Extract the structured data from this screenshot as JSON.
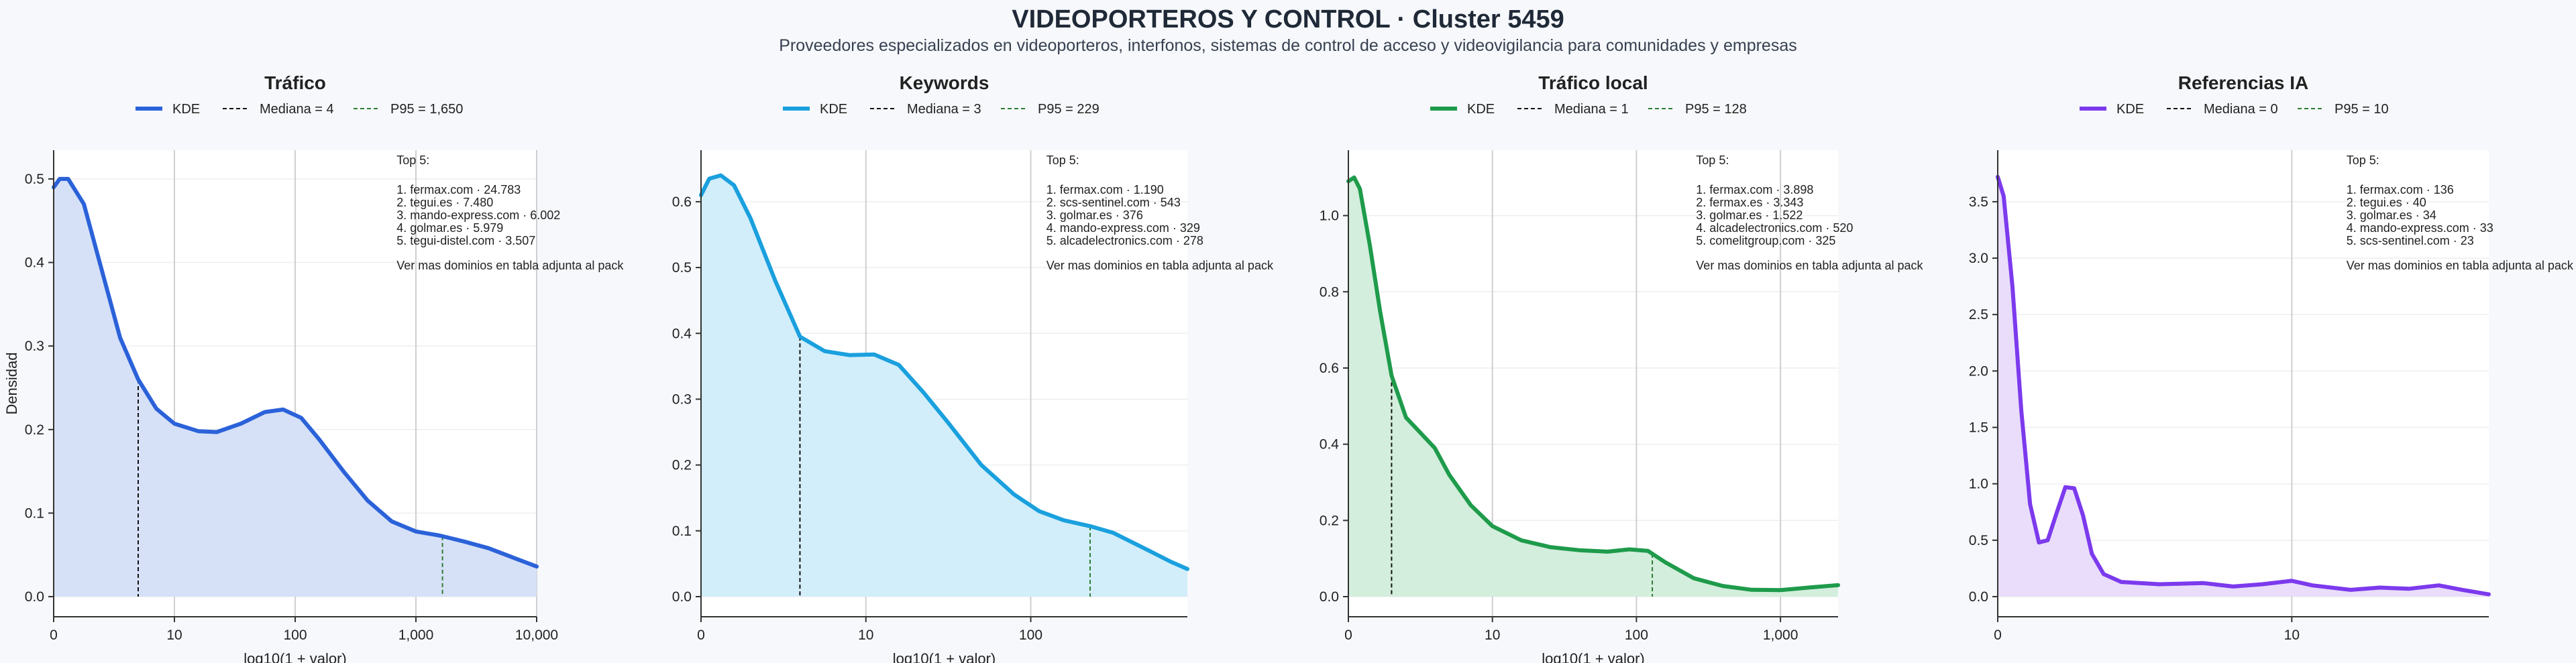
{
  "header": {
    "title": "VIDEOPORTEROS Y CONTROL · Cluster 5459",
    "subtitle": "Proveedores especializados en videoporteros, interfonos, sistemas de control de acceso y videovigilancia para comunidades y empresas"
  },
  "chart_data": [
    {
      "type": "area",
      "title": "Tráfico",
      "color": "#2b62d9",
      "fill": "#d6e1f8",
      "p95_color": "#2e7d32",
      "xlabel": "log10(1 + valor)",
      "ylabel": "Densidad",
      "x_scale": "log10(1+x)",
      "xlim": [
        0,
        4
      ],
      "ylim": [
        0,
        0.52
      ],
      "xticks": [
        {
          "v": 0,
          "label": "0"
        },
        {
          "v": 1,
          "label": "10"
        },
        {
          "v": 2,
          "label": "100"
        },
        {
          "v": 3,
          "label": "1,000"
        },
        {
          "v": 4,
          "label": "10,000"
        }
      ],
      "yticks": [
        {
          "v": 0,
          "label": "0.0"
        },
        {
          "v": 0.1,
          "label": "0.1"
        },
        {
          "v": 0.2,
          "label": "0.2"
        },
        {
          "v": 0.3,
          "label": "0.3"
        },
        {
          "v": 0.4,
          "label": "0.4"
        },
        {
          "v": 0.5,
          "label": "0.5"
        }
      ],
      "legend": [
        "KDE",
        "Mediana = 4",
        "P95 = 1,650"
      ],
      "median_x": 0.7,
      "p95_x": 3.22,
      "kde": [
        [
          0,
          0.49
        ],
        [
          0.05,
          0.5
        ],
        [
          0.12,
          0.5
        ],
        [
          0.25,
          0.47
        ],
        [
          0.4,
          0.39
        ],
        [
          0.55,
          0.31
        ],
        [
          0.7,
          0.26
        ],
        [
          0.85,
          0.225
        ],
        [
          1,
          0.207
        ],
        [
          1.2,
          0.198
        ],
        [
          1.35,
          0.197
        ],
        [
          1.55,
          0.207
        ],
        [
          1.75,
          0.221
        ],
        [
          1.9,
          0.224
        ],
        [
          2.05,
          0.214
        ],
        [
          2.2,
          0.188
        ],
        [
          2.4,
          0.15
        ],
        [
          2.6,
          0.115
        ],
        [
          2.8,
          0.09
        ],
        [
          3,
          0.078
        ],
        [
          3.2,
          0.073
        ],
        [
          3.4,
          0.066
        ],
        [
          3.6,
          0.058
        ],
        [
          3.8,
          0.047
        ],
        [
          4,
          0.036
        ]
      ],
      "top5_title": "Top 5:",
      "top5": [
        "1. fermax.com · 24.783",
        "2. tegui.es · 7.480",
        "3. mando-express.com · 6.002",
        "4. golmar.es · 5.979",
        "5. tegui-distel.com · 3.507"
      ],
      "note": "Ver mas dominios en tabla adjunta al pack"
    },
    {
      "type": "area",
      "title": "Keywords",
      "color": "#1aa0de",
      "fill": "#d2eefa",
      "p95_color": "#2e7d32",
      "xlabel": "log10(1 + valor)",
      "ylabel": "",
      "x_scale": "log10(1+x)",
      "xlim": [
        0,
        2.95
      ],
      "ylim": [
        0,
        0.66
      ],
      "xticks": [
        {
          "v": 0,
          "label": "0"
        },
        {
          "v": 1,
          "label": "10"
        },
        {
          "v": 2,
          "label": "100"
        }
      ],
      "yticks": [
        {
          "v": 0,
          "label": "0.0"
        },
        {
          "v": 0.1,
          "label": "0.1"
        },
        {
          "v": 0.2,
          "label": "0.2"
        },
        {
          "v": 0.3,
          "label": "0.3"
        },
        {
          "v": 0.4,
          "label": "0.4"
        },
        {
          "v": 0.5,
          "label": "0.5"
        },
        {
          "v": 0.6,
          "label": "0.6"
        }
      ],
      "legend": [
        "KDE",
        "Mediana = 3",
        "P95 = 229"
      ],
      "median_x": 0.6,
      "p95_x": 2.36,
      "kde": [
        [
          0,
          0.61
        ],
        [
          0.05,
          0.635
        ],
        [
          0.12,
          0.64
        ],
        [
          0.2,
          0.625
        ],
        [
          0.3,
          0.575
        ],
        [
          0.45,
          0.48
        ],
        [
          0.6,
          0.395
        ],
        [
          0.75,
          0.373
        ],
        [
          0.9,
          0.367
        ],
        [
          1.05,
          0.368
        ],
        [
          1.2,
          0.352
        ],
        [
          1.35,
          0.31
        ],
        [
          1.5,
          0.264
        ],
        [
          1.7,
          0.2
        ],
        [
          1.9,
          0.155
        ],
        [
          2.05,
          0.13
        ],
        [
          2.2,
          0.116
        ],
        [
          2.36,
          0.107
        ],
        [
          2.5,
          0.097
        ],
        [
          2.7,
          0.072
        ],
        [
          2.85,
          0.053
        ],
        [
          2.95,
          0.042
        ]
      ],
      "top5_title": "Top 5:",
      "top5": [
        "1. fermax.com · 1.190",
        "2. scs-sentinel.com · 543",
        "3. golmar.es · 376",
        "4. mando-express.com · 329",
        "5. alcadelectronics.com · 278"
      ],
      "note": "Ver mas dominios en tabla adjunta al pack"
    },
    {
      "type": "area",
      "title": "Tráfico local",
      "color": "#1e9b4b",
      "fill": "#d3eedc",
      "p95_color": "#2e7d32",
      "xlabel": "log10(1 + valor)",
      "ylabel": "",
      "x_scale": "log10(1+x)",
      "xlim": [
        0,
        3.4
      ],
      "ylim": [
        0,
        1.14
      ],
      "xticks": [
        {
          "v": 0,
          "label": "0"
        },
        {
          "v": 1,
          "label": "10"
        },
        {
          "v": 2,
          "label": "100"
        },
        {
          "v": 3,
          "label": "1,000"
        }
      ],
      "yticks": [
        {
          "v": 0,
          "label": "0.0"
        },
        {
          "v": 0.2,
          "label": "0.2"
        },
        {
          "v": 0.4,
          "label": "0.4"
        },
        {
          "v": 0.6,
          "label": "0.6"
        },
        {
          "v": 0.8,
          "label": "0.8"
        },
        {
          "v": 1.0,
          "label": "1.0"
        }
      ],
      "legend": [
        "KDE",
        "Mediana = 1",
        "P95 = 128"
      ],
      "median_x": 0.3,
      "p95_x": 2.11,
      "kde": [
        [
          0,
          1.09
        ],
        [
          0.04,
          1.1
        ],
        [
          0.08,
          1.07
        ],
        [
          0.15,
          0.92
        ],
        [
          0.22,
          0.75
        ],
        [
          0.3,
          0.58
        ],
        [
          0.4,
          0.47
        ],
        [
          0.5,
          0.43
        ],
        [
          0.6,
          0.39
        ],
        [
          0.7,
          0.32
        ],
        [
          0.85,
          0.24
        ],
        [
          1,
          0.185
        ],
        [
          1.2,
          0.148
        ],
        [
          1.4,
          0.13
        ],
        [
          1.6,
          0.122
        ],
        [
          1.8,
          0.118
        ],
        [
          1.95,
          0.124
        ],
        [
          2.08,
          0.12
        ],
        [
          2.2,
          0.09
        ],
        [
          2.4,
          0.048
        ],
        [
          2.6,
          0.028
        ],
        [
          2.8,
          0.018
        ],
        [
          3.0,
          0.017
        ],
        [
          3.2,
          0.024
        ],
        [
          3.4,
          0.03
        ]
      ],
      "top5_title": "Top 5:",
      "top5": [
        "1. fermax.com · 3.898",
        "2. fermax.es · 3.343",
        "3. golmar.es · 1.522",
        "4. alcadelectronics.com · 520",
        "5. comelitgroup.com · 325"
      ],
      "note": "Ver mas dominios en tabla adjunta al pack"
    },
    {
      "type": "area",
      "title": "Referencias IA",
      "color": "#7c3aed",
      "fill": "#e9ddfb",
      "p95_color": "#2e7d32",
      "xlabel": "",
      "ylabel": "",
      "x_scale": "log10(1+x)",
      "xlim": [
        0,
        1.67
      ],
      "ylim": [
        0,
        3.85
      ],
      "xticks": [
        {
          "v": 0,
          "label": "0"
        },
        {
          "v": 1,
          "label": "10"
        }
      ],
      "yticks": [
        {
          "v": 0,
          "label": "0.0"
        },
        {
          "v": 0.5,
          "label": "0.5"
        },
        {
          "v": 1.0,
          "label": "1.0"
        },
        {
          "v": 1.5,
          "label": "1.5"
        },
        {
          "v": 2.0,
          "label": "2.0"
        },
        {
          "v": 2.5,
          "label": "2.5"
        },
        {
          "v": 3.0,
          "label": "3.0"
        },
        {
          "v": 3.5,
          "label": "3.5"
        }
      ],
      "legend": [
        "KDE",
        "Mediana = 0",
        "P95 = 10"
      ],
      "median_x": 0,
      "p95_x": null,
      "kde": [
        [
          0,
          3.72
        ],
        [
          0.02,
          3.55
        ],
        [
          0.05,
          2.75
        ],
        [
          0.08,
          1.65
        ],
        [
          0.11,
          0.82
        ],
        [
          0.14,
          0.48
        ],
        [
          0.17,
          0.5
        ],
        [
          0.2,
          0.74
        ],
        [
          0.23,
          0.97
        ],
        [
          0.26,
          0.96
        ],
        [
          0.29,
          0.72
        ],
        [
          0.32,
          0.38
        ],
        [
          0.36,
          0.2
        ],
        [
          0.42,
          0.13
        ],
        [
          0.55,
          0.11
        ],
        [
          0.7,
          0.12
        ],
        [
          0.8,
          0.09
        ],
        [
          0.9,
          0.11
        ],
        [
          1.0,
          0.14
        ],
        [
          1.07,
          0.1
        ],
        [
          1.2,
          0.06
        ],
        [
          1.3,
          0.08
        ],
        [
          1.4,
          0.07
        ],
        [
          1.5,
          0.1
        ],
        [
          1.58,
          0.06
        ],
        [
          1.67,
          0.02
        ]
      ],
      "top5_title": "Top 5:",
      "top5": [
        "1. fermax.com · 136",
        "2. tegui.es · 40",
        "3. golmar.es · 34",
        "4. mando-express.com · 33",
        "5. scs-sentinel.com · 23"
      ],
      "note": "Ver mas dominios en tabla adjunta al pack"
    }
  ]
}
